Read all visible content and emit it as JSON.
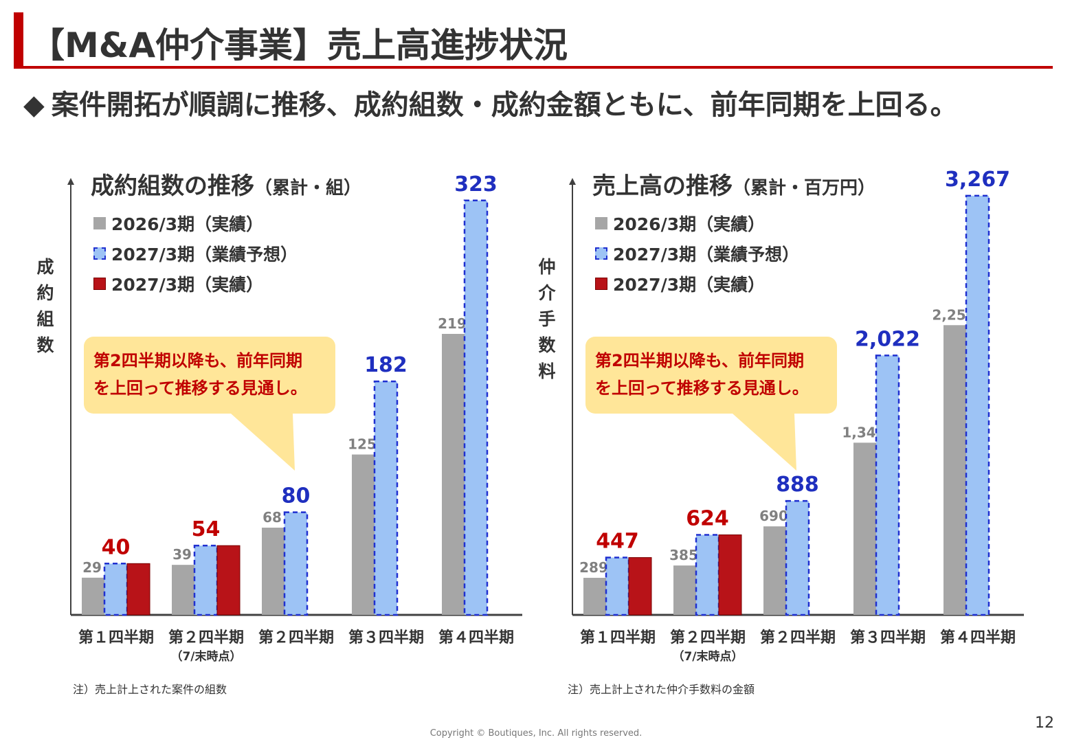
{
  "title": "【M&A仲介事業】売上高進捗状況",
  "headline": {
    "icon": "diamond-icon",
    "marker": "◆",
    "text": "案件開拓が順調に推移、成約組数・成約金額ともに、前年同期を上回る。"
  },
  "colors": {
    "accent": "#c00000",
    "actual_2026": "#a6a6a6",
    "forecast_2027": "#9dc3f5",
    "forecast_border": "#1f2fd0",
    "actual_2027": "#b81318",
    "callout": "#ffe699"
  },
  "legend": [
    "2026/3期（実績）",
    "2027/3期（業績予想）",
    "2027/3期（実績）"
  ],
  "callout": {
    "line1": "第2四半期以降も、前年同期",
    "line2": "を上回って推移する見通し。"
  },
  "category_sub": "（7/末時点）",
  "chart_data": [
    {
      "type": "bar",
      "title": "成約組数の推移",
      "title_sub": "（累計・組）",
      "ylabel": "成約組数",
      "note": "注）売上計上された案件の組数",
      "ylim": [
        0,
        340
      ],
      "categories": [
        "第１四半期",
        "第２四半期",
        "第２四半期",
        "第３四半期",
        "第４四半期"
      ],
      "series": [
        {
          "name": "2026/3期（実績）",
          "values": [
            29,
            39,
            68,
            125,
            219
          ],
          "labels": [
            "29",
            "39",
            "68",
            "125",
            "219"
          ]
        },
        {
          "name": "2027/3期（業績予想）",
          "values": [
            40,
            54,
            80,
            182,
            323
          ],
          "labels": [
            "",
            "",
            "80",
            "182",
            "323"
          ]
        },
        {
          "name": "2027/3期（実績）",
          "values": [
            40,
            54,
            null,
            null,
            null
          ],
          "labels": [
            "40",
            "54",
            "",
            "",
            ""
          ]
        }
      ]
    },
    {
      "type": "bar",
      "title": "売上高の推移",
      "title_sub": "（累計・百万円）",
      "ylabel": "仲介手数料",
      "note": "注）売上計上された仲介手数料の金額",
      "ylim": [
        0,
        3400
      ],
      "categories": [
        "第１四半期",
        "第２四半期",
        "第２四半期",
        "第３四半期",
        "第４四半期"
      ],
      "series": [
        {
          "name": "2026/3期（実績）",
          "values": [
            289,
            385,
            690,
            1342,
            2258
          ],
          "labels": [
            "289",
            "385",
            "690",
            "1,342",
            "2,258"
          ]
        },
        {
          "name": "2027/3期（業績予想）",
          "values": [
            447,
            624,
            888,
            2022,
            3267
          ],
          "labels": [
            "",
            "",
            "888",
            "2,022",
            "3,267"
          ]
        },
        {
          "name": "2027/3期（実績）",
          "values": [
            447,
            624,
            null,
            null,
            null
          ],
          "labels": [
            "447",
            "624",
            "",
            "",
            ""
          ]
        }
      ]
    }
  ],
  "page_number": "12",
  "copyright": "Copyright © Boutiques, Inc. All rights reserved."
}
